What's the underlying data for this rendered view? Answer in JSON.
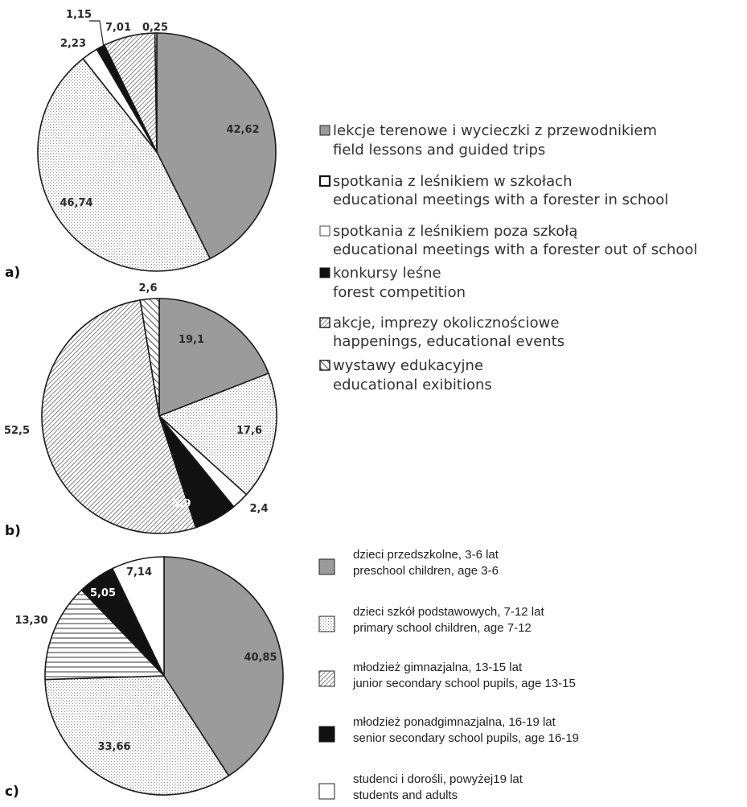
{
  "panels": [
    {
      "letter": "a)"
    },
    {
      "letter": "b)"
    },
    {
      "letter": "c)"
    }
  ],
  "legend_activities": [
    {
      "pl": "lekcje terenowe i wycieczki z przewodnikiem",
      "en": "field lessons and guided trips",
      "pattern": "gray"
    },
    {
      "pl": "spotkania z leśnikiem w szkołach",
      "en": "educational meetings with a forester in school",
      "pattern": "white-thick"
    },
    {
      "pl": "spotkania z leśnikiem poza szkołą",
      "en": "educational meetings with a forester out of school",
      "pattern": "white"
    },
    {
      "pl": "konkursy leśne",
      "en": "forest competition",
      "pattern": "black"
    },
    {
      "pl": "akcje, imprezy okolicznościowe",
      "en": "happenings, educational events",
      "pattern": "hatch-dense"
    },
    {
      "pl": "wystawy edukacyjne",
      "en": "educational exibitions",
      "pattern": "hatch-wide"
    }
  ],
  "legend_groups": [
    {
      "pl": "dzieci przedszkolne, 3-6 lat",
      "en": "preschool children, age 3-6",
      "pattern": "gray"
    },
    {
      "pl": "dzieci szkół podstawowych, 7-12 lat",
      "en": "primary school children, age 7-12",
      "pattern": "dots"
    },
    {
      "pl": "młodzież gimnazjalna, 13-15 lat",
      "en": "junior secondary school pupils, age 13-15",
      "pattern": "hatch-dense"
    },
    {
      "pl": "młodzież ponadgimnazjalna, 16-19 lat",
      "en": "senior secondary school pupils, age 16-19",
      "pattern": "black"
    },
    {
      "pl": "studenci i dorośli, powyżej19 lat",
      "en": "students and adults",
      "pattern": "white"
    }
  ],
  "chart_data": [
    {
      "type": "pie",
      "panel": "a)",
      "start_angle_deg": 0,
      "direction": "clockwise",
      "slices": [
        {
          "label": "42,62",
          "value": 42.62,
          "pattern": "gray"
        },
        {
          "label": "46,74",
          "value": 46.74,
          "pattern": "dots"
        },
        {
          "label": "2,23",
          "value": 2.23,
          "pattern": "white"
        },
        {
          "label": "1,15",
          "value": 1.15,
          "pattern": "black"
        },
        {
          "label": "7,01",
          "value": 7.01,
          "pattern": "hatch-dense"
        },
        {
          "label": "0,25",
          "value": 0.25,
          "pattern": "hatch-wide"
        }
      ]
    },
    {
      "type": "pie",
      "panel": "b)",
      "start_angle_deg": 0,
      "direction": "clockwise",
      "slices": [
        {
          "label": "19,1",
          "value": 19.1,
          "pattern": "gray"
        },
        {
          "label": "17,6",
          "value": 17.6,
          "pattern": "dots"
        },
        {
          "label": "2,4",
          "value": 2.4,
          "pattern": "white"
        },
        {
          "label": "5,9",
          "value": 5.9,
          "pattern": "black"
        },
        {
          "label": "52,5",
          "value": 52.5,
          "pattern": "hatch-dense"
        },
        {
          "label": "2,6",
          "value": 2.6,
          "pattern": "hatch-wide"
        }
      ]
    },
    {
      "type": "pie",
      "panel": "c)",
      "start_angle_deg": 0,
      "direction": "clockwise",
      "slices": [
        {
          "label": "40,85",
          "value": 40.85,
          "pattern": "gray"
        },
        {
          "label": "33,66",
          "value": 33.66,
          "pattern": "dots"
        },
        {
          "label": "13,30",
          "value": 13.3,
          "pattern": "hlines"
        },
        {
          "label": "5,05",
          "value": 5.05,
          "pattern": "black"
        },
        {
          "label": "7,14",
          "value": 7.14,
          "pattern": "white"
        }
      ]
    }
  ]
}
